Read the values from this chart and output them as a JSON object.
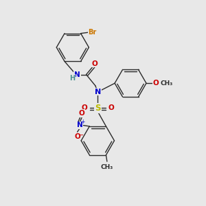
{
  "background_color": "#e8e8e8",
  "bond_color": "#2a2a2a",
  "figsize": [
    3.0,
    3.0
  ],
  "dpi": 100,
  "atoms": {
    "Br": {
      "color": "#cc7700",
      "fontsize": 7.0,
      "fontweight": "bold"
    },
    "N": {
      "color": "#0000cc",
      "fontsize": 7.5,
      "fontweight": "bold"
    },
    "H": {
      "color": "#4a8f8f",
      "fontsize": 7.0,
      "fontweight": "bold"
    },
    "O": {
      "color": "#cc0000",
      "fontsize": 7.5,
      "fontweight": "bold"
    },
    "S": {
      "color": "#bbbb00",
      "fontsize": 8.0,
      "fontweight": "bold"
    },
    "C": {
      "color": "#2a2a2a",
      "fontsize": 6.5
    }
  }
}
